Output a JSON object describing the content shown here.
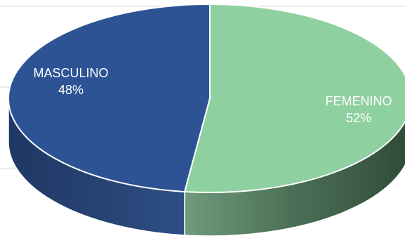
{
  "chart_data": {
    "type": "pie",
    "style": "3d",
    "title": "",
    "slices": [
      {
        "label": "FEMENINO",
        "percent_label": "52%",
        "value": 52,
        "color": "#8fd0a0",
        "side_color": "#3c5d48"
      },
      {
        "label": "MASCULINO",
        "percent_label": "48%",
        "value": 48,
        "color": "#2e5395",
        "side_color": "#243f6e"
      }
    ]
  }
}
